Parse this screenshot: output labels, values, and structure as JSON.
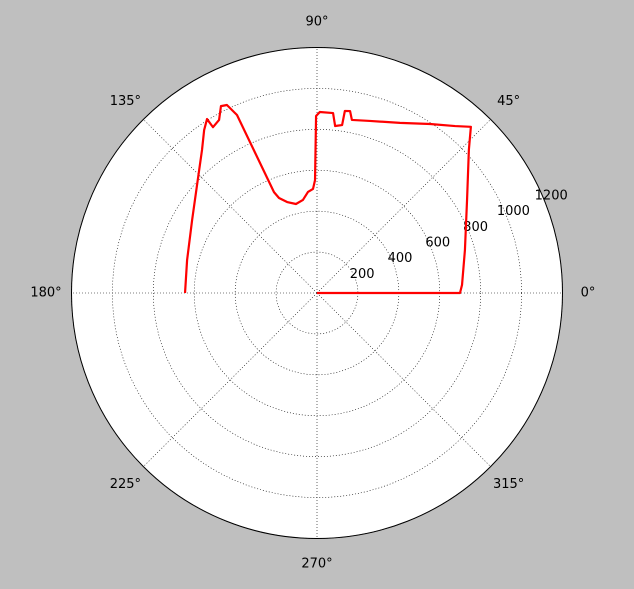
{
  "chart_data": {
    "type": "polar",
    "theta": [
      0,
      0,
      3.2,
      16.2,
      31.8,
      43.3,
      47.2,
      50.4,
      56.2,
      64.0,
      72.9,
      78.6,
      79.7,
      81.3,
      81.5,
      83.8,
      84.9,
      89.1,
      90.3,
      91.0,
      92.2,
      95.1,
      98.6,
      103.3,
      108.2,
      111.8,
      113.1,
      114.2,
      115.6,
      117.2,
      119.5,
      122.1,
      122.3,
      124.7,
      128.8,
      138.0,
      149.7,
      165.8,
      180
    ],
    "r": [
      0,
      699,
      710,
      753,
      863,
      1020,
      1107,
      1059,
      994,
      925,
      880,
      863,
      904,
      900,
      830,
      821,
      883,
      885,
      865,
      552,
      509,
      496,
      460,
      447,
      468,
      500,
      536,
      954,
      1019,
      1027,
      972,
      957,
      1006,
      969,
      897,
      789,
      707,
      655,
      645
    ],
    "color": "#ff0000",
    "rlim": [
      0,
      1200
    ],
    "rticks": [
      200,
      400,
      600,
      800,
      1000,
      1200
    ],
    "thetaticks": [
      {
        "value": 0,
        "label": "0°"
      },
      {
        "value": 45,
        "label": "45°"
      },
      {
        "value": 90,
        "label": "90°"
      },
      {
        "value": 135,
        "label": "135°"
      },
      {
        "value": 180,
        "label": "180°"
      },
      {
        "value": 225,
        "label": "225°"
      },
      {
        "value": 270,
        "label": "270°"
      },
      {
        "value": 315,
        "label": "315°"
      }
    ],
    "grid": true
  }
}
